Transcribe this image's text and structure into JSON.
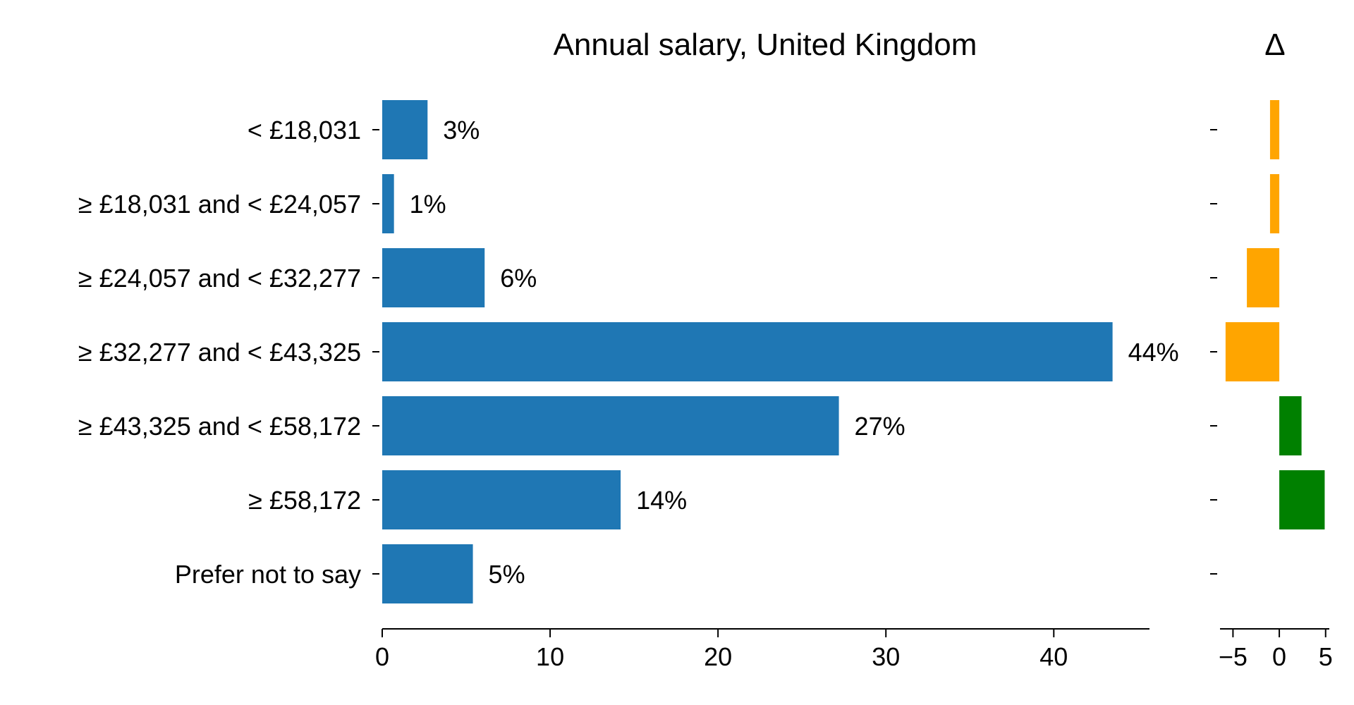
{
  "chart_data": [
    {
      "type": "bar",
      "orientation": "horizontal",
      "title": "Annual salary, United Kingdom",
      "categories": [
        "< £18,031",
        "≥ £18,031 and < £24,057",
        "≥ £24,057 and < £32,277",
        "≥ £32,277 and < £43,325",
        "≥ £43,325 and < £58,172",
        "≥ £58,172",
        "Prefer not to say"
      ],
      "values": [
        2.7,
        0.7,
        6.1,
        43.5,
        27.2,
        14.2,
        5.4
      ],
      "data_labels": [
        "3%",
        "1%",
        "6%",
        "44%",
        "27%",
        "14%",
        "5%"
      ],
      "xlim": [
        0,
        45.7
      ],
      "xticks": [
        0,
        10,
        20,
        30,
        40
      ],
      "xtick_labels": [
        "0",
        "10",
        "20",
        "30",
        "40"
      ],
      "color": "#1f77b4",
      "grid": false,
      "legend": "none"
    },
    {
      "type": "bar",
      "orientation": "horizontal",
      "title": "Δ",
      "categories": [
        "< £18,031",
        "≥ £18,031 and < £24,057",
        "≥ £24,057 and < £32,277",
        "≥ £32,277 and < £43,325",
        "≥ £43,325 and < £58,172",
        "≥ £58,172",
        "Prefer not to say"
      ],
      "values": [
        -1.0,
        -1.0,
        -3.5,
        -5.8,
        2.4,
        4.9,
        0
      ],
      "xlim": [
        -6.4,
        5.4
      ],
      "xticks": [
        -5,
        0,
        5
      ],
      "xtick_labels": [
        "−5",
        "0",
        "5"
      ],
      "negative_color": "#ffa500",
      "positive_color": "#008000",
      "grid": false,
      "legend": "none"
    }
  ]
}
